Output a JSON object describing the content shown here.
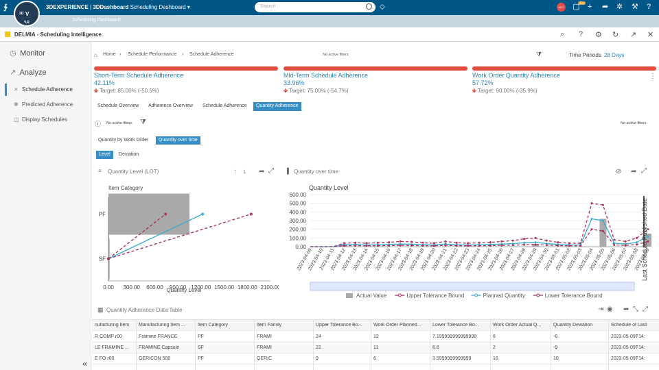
{
  "topbar": {
    "brand": "3DEXPERIENCE",
    "separator": " | ",
    "product": "3DDashboard",
    "dashboard": "Scheduling Dashboard",
    "search_placeholder": "Search",
    "avatar_initials": "NET",
    "badge": "999",
    "compass_labels": [
      "3D",
      "V",
      "V,R"
    ]
  },
  "subbar": {
    "tab": "Scheduling Dashboard"
  },
  "widget": {
    "title": "DELMIA - Scheduling Intelligence"
  },
  "sidebar": {
    "sections": [
      {
        "label": "Monitor",
        "icon": "monitor-icon"
      },
      {
        "label": "Analyze",
        "icon": "analyze-icon"
      }
    ],
    "items": [
      {
        "label": "Schedule Adherence",
        "icon": "adherence-icon",
        "active": true
      },
      {
        "label": "Predicted Adherence",
        "icon": "predicted-icon"
      },
      {
        "label": "Display Schedules",
        "icon": "display-icon"
      }
    ]
  },
  "breadcrumb": {
    "items": [
      "Home",
      "Schedule Performance",
      "Schedule Adherence"
    ],
    "filters": "No active filters",
    "time_periods_label": "Time Periods",
    "time_periods_value": "28 Days"
  },
  "kpis": [
    {
      "title": "Short-Term Schedule Adherence",
      "value": "42.11%",
      "target": "Target: 85.00% (-50.5%)"
    },
    {
      "title": "Mid-Term Schedule Adherence",
      "value": "33.96%",
      "target": "Target: 75.00% (-54.7%)"
    },
    {
      "title": "Work Order Quantity Adherence",
      "value": "57.72%",
      "target": "Target: 90.00% (-35.9%)"
    }
  ],
  "tabs": [
    "Schedule Overview",
    "Adherence Overview",
    "Schedule Adherence",
    "Quantity Adherence"
  ],
  "filters": {
    "left": "No active filters",
    "right": "No active filters"
  },
  "subtabs": [
    "Quantity by Work Order",
    "Quantity over time"
  ],
  "subsubtabs": [
    "Level",
    "Deviation"
  ],
  "left_panel": {
    "title": "Quantity Level (LOT)"
  },
  "right_panel": {
    "title": "Quantity over time"
  },
  "table_title": "Quantity Adherence Data Table",
  "table": {
    "columns": [
      "nufacturing Item",
      "Manufacturing Item ...",
      "Item Category",
      "Item Family",
      "Upper Tolerance Bo...",
      "Work Order Planned...",
      "Lower Tolerance Bo...",
      "Work Order Actual Q...",
      "Quantity Deviation",
      "Schedule of Last"
    ],
    "rows": [
      [
        "R COMP r00",
        "Framine FRANCE",
        "PF",
        "FRAMI",
        "24",
        "12",
        "7.199999999999999",
        "6",
        "-6",
        "2023-05-09T14:"
      ],
      [
        "LE FRAMINE ...",
        "FRAMINE Capsule",
        "SF",
        "FRAMI",
        "22",
        "11",
        "6.6",
        "2",
        "-9",
        "2023-05-09T14:"
      ],
      [
        "E FO r00",
        "GERICON 500",
        "PF",
        "GERIC",
        "9",
        "6",
        "3.5999999999999",
        "16",
        "10",
        "2023-05-09T14:"
      ]
    ]
  },
  "chart_data": [
    {
      "type": "scatter",
      "title": "",
      "ylabel": "Item Category",
      "xlabel": "Quantity Level",
      "categories": [
        "PF",
        "SF"
      ],
      "x_ticks": [
        "0.00",
        "300.00",
        "600.00",
        "900.00",
        "1200.00",
        "1500.00",
        "1800.00",
        "2100.00"
      ],
      "xlim": [
        0,
        2100
      ],
      "series": [
        {
          "name": "Upper Tolerance Bound",
          "color": "#a83262",
          "points": [
            {
              "x": 0,
              "y": "SF"
            },
            {
              "x": 1850,
              "y": "PF"
            }
          ]
        },
        {
          "name": "Planned Quantity",
          "color": "#3aabd3",
          "points": [
            {
              "x": 0,
              "y": "SF"
            },
            {
              "x": 1220,
              "y": "PF"
            }
          ]
        },
        {
          "name": "Lower Tolerance Bound",
          "color": "#a83262",
          "points": [
            {
              "x": 0,
              "y": "SF"
            },
            {
              "x": 740,
              "y": "PF"
            }
          ]
        }
      ],
      "bars": [
        {
          "category": "PF",
          "value": 1050,
          "name": "Actual Value"
        },
        {
          "category": "SF",
          "value": 15,
          "name": "Actual Value"
        }
      ]
    },
    {
      "type": "line",
      "ylabel": "Quantity Level",
      "xlabel": "",
      "ylim": [
        0,
        600
      ],
      "y_ticks": [
        "0.00",
        "100.00",
        "200.00",
        "300.00",
        "400.00",
        "500.00",
        "600.00"
      ],
      "x": [
        "2023-04-09",
        "2023-04-10",
        "2023-04-11",
        "2023-04-12",
        "2023-04-13",
        "2023-04-14",
        "2023-04-15",
        "2023-04-16",
        "2023-04-17",
        "2023-04-18",
        "2023-04-19",
        "2023-04-20",
        "2023-04-21",
        "2023-04-22",
        "2023-04-23",
        "2023-04-24",
        "2023-04-25",
        "2023-04-26",
        "2023-04-27",
        "2023-04-28",
        "2023-04-29",
        "2023-04-30",
        "2023-05-01",
        "2023-05-02",
        "2023-05-03",
        "2023-05-04",
        "2023-05-05",
        "2023-05-06",
        "2023-05-07",
        "2023-05-08",
        "2023-05-09"
      ],
      "series": [
        {
          "name": "Actual Value",
          "kind": "bar",
          "color": "#a9a9a9",
          "values": [
            0,
            0,
            0,
            30,
            0,
            0,
            0,
            0,
            0,
            0,
            0,
            0,
            0,
            0,
            0,
            0,
            0,
            0,
            0,
            0,
            30,
            0,
            0,
            0,
            0,
            0,
            320,
            0,
            0,
            0,
            150
          ]
        },
        {
          "name": "Upper Tolerance Bound",
          "kind": "line",
          "color": "#a83262",
          "values": [
            0,
            0,
            0,
            40,
            45,
            40,
            45,
            50,
            60,
            55,
            45,
            40,
            60,
            45,
            40,
            45,
            50,
            60,
            70,
            90,
            100,
            70,
            50,
            40,
            40,
            500,
            480,
            80,
            60,
            100,
            200
          ]
        },
        {
          "name": "Planned Quantity",
          "kind": "line",
          "color": "#3aabd3",
          "values": [
            0,
            0,
            0,
            20,
            25,
            20,
            22,
            25,
            30,
            28,
            22,
            20,
            30,
            22,
            20,
            22,
            25,
            30,
            35,
            45,
            50,
            35,
            25,
            20,
            20,
            320,
            300,
            40,
            30,
            50,
            120
          ]
        },
        {
          "name": "Lower Tolerance Bound",
          "kind": "line",
          "color": "#a83262",
          "values": [
            0,
            0,
            0,
            10,
            12,
            10,
            11,
            12,
            15,
            14,
            11,
            10,
            15,
            11,
            10,
            11,
            12,
            15,
            18,
            22,
            25,
            18,
            12,
            10,
            10,
            200,
            180,
            20,
            15,
            25,
            60
          ]
        }
      ],
      "annotation": "Last Schedule Published Date",
      "legend_position": "bottom"
    }
  ]
}
